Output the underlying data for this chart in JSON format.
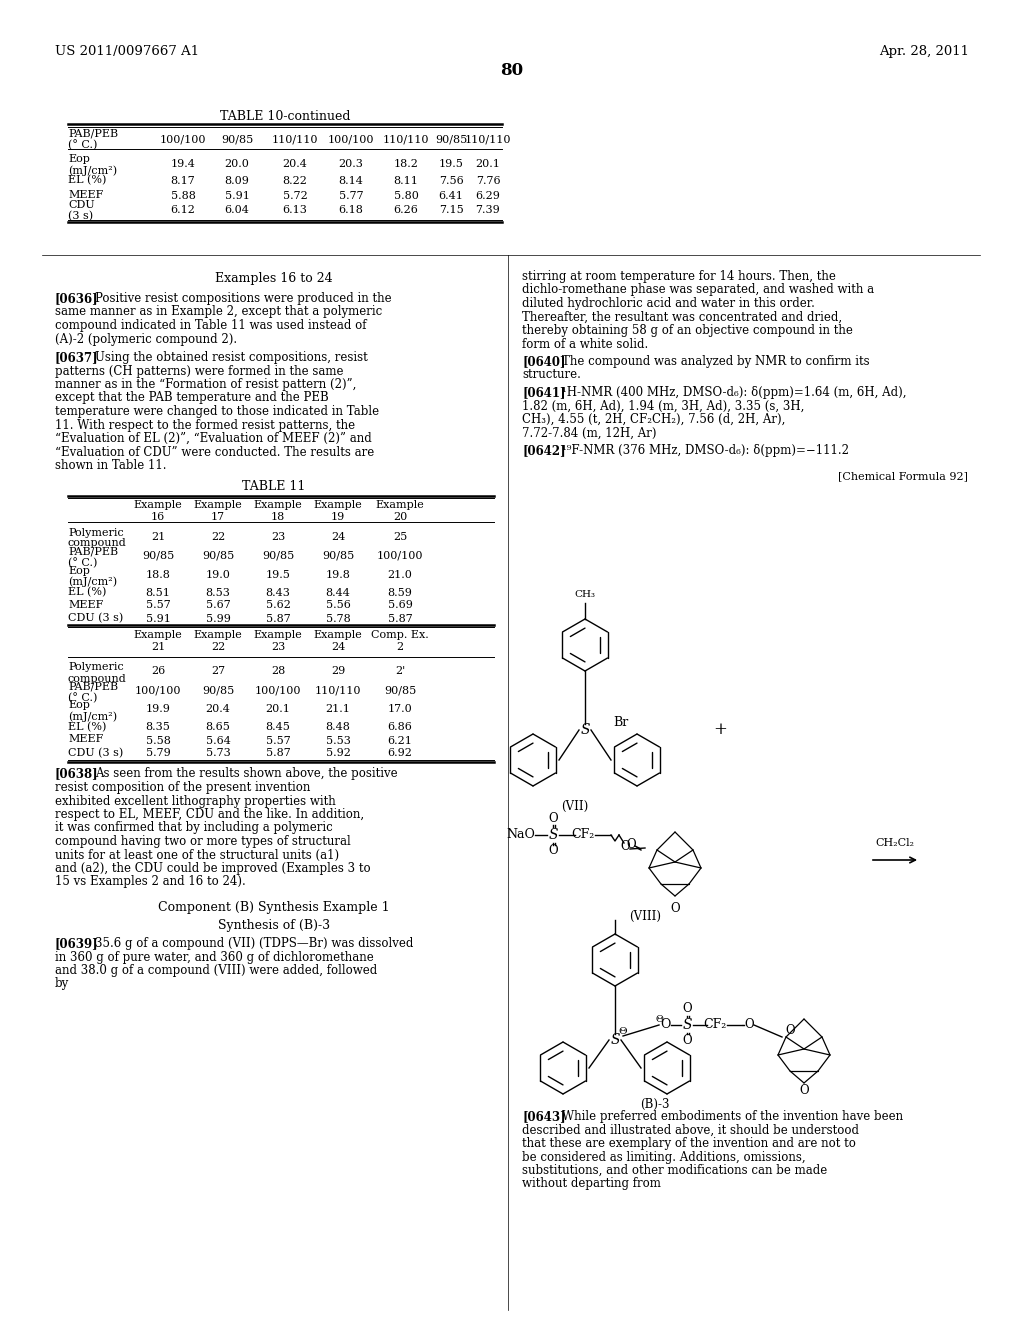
{
  "page_number": "80",
  "patent_left": "US 2011/0097667 A1",
  "patent_right": "Apr. 28, 2011",
  "table10_title": "TABLE 10-continued",
  "table10_headers": [
    "PAB/PEB\n(° C.)",
    "100/100",
    "90/85",
    "110/110",
    "100/100",
    "110/110",
    "90/85",
    "110/110"
  ],
  "table10_rows": [
    [
      "Eop\n(mJ/cm²)",
      "19.4",
      "20.0",
      "20.4",
      "20.3",
      "18.2",
      "19.5",
      "20.1"
    ],
    [
      "EL (%)",
      "8.17",
      "8.09",
      "8.22",
      "8.14",
      "8.11",
      "7.56",
      "7.76"
    ],
    [
      "MEEF",
      "5.88",
      "5.91",
      "5.72",
      "5.77",
      "5.80",
      "6.41",
      "6.29"
    ],
    [
      "CDU\n(3 s)",
      "6.12",
      "6.04",
      "6.13",
      "6.18",
      "6.26",
      "7.15",
      "7.39"
    ]
  ],
  "table11_title": "TABLE 11",
  "table11_header1": [
    "",
    "Example\n16",
    "Example\n17",
    "Example\n18",
    "Example\n19",
    "Example\n20"
  ],
  "table11_rows1": [
    [
      "Polymeric\ncompound",
      "21",
      "22",
      "23",
      "24",
      "25"
    ],
    [
      "PAB/PEB\n(° C.)",
      "90/85",
      "90/85",
      "90/85",
      "90/85",
      "100/100"
    ],
    [
      "Eop\n(mJ/cm²)",
      "18.8",
      "19.0",
      "19.5",
      "19.8",
      "21.0"
    ],
    [
      "EL (%)",
      "8.51",
      "8.53",
      "8.43",
      "8.44",
      "8.59"
    ],
    [
      "MEEF",
      "5.57",
      "5.67",
      "5.62",
      "5.56",
      "5.69"
    ],
    [
      "CDU (3 s)",
      "5.91",
      "5.99",
      "5.87",
      "5.78",
      "5.87"
    ]
  ],
  "table11_header2": [
    "",
    "Example\n21",
    "Example\n22",
    "Example\n23",
    "Example\n24",
    "Comp. Ex.\n2"
  ],
  "table11_rows2": [
    [
      "Polymeric\ncompound",
      "26",
      "27",
      "28",
      "29",
      "2'"
    ],
    [
      "PAB/PEB\n(° C.)",
      "100/100",
      "90/85",
      "100/100",
      "110/110",
      "90/85"
    ],
    [
      "Eop\n(mJ/cm²)",
      "19.9",
      "20.4",
      "20.1",
      "21.1",
      "17.0"
    ],
    [
      "EL (%)",
      "8.35",
      "8.65",
      "8.45",
      "8.48",
      "6.86"
    ],
    [
      "MEEF",
      "5.58",
      "5.64",
      "5.57",
      "5.53",
      "6.21"
    ],
    [
      "CDU (3 s)",
      "5.79",
      "5.73",
      "5.87",
      "5.92",
      "6.92"
    ]
  ]
}
